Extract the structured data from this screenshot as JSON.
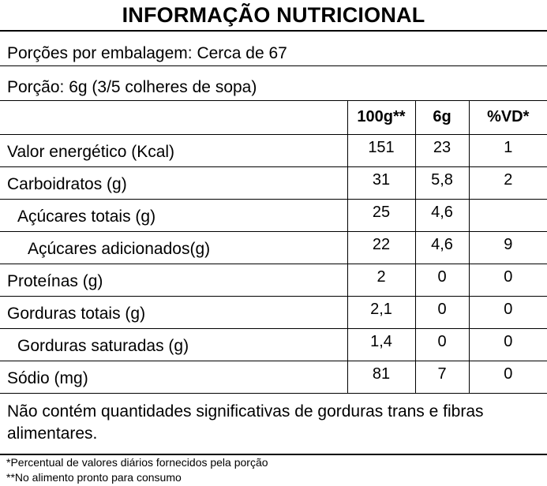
{
  "title": "INFORMAÇÃO NUTRICIONAL",
  "servings_per_package": "Porções por embalagem: Cerca de 67",
  "portion": "Porção: 6g (3/5 colheres de sopa)",
  "table": {
    "headers": [
      "100g**",
      "6g",
      "%VD*"
    ],
    "rows": [
      {
        "label": "Valor energético (Kcal)",
        "per100g": "151",
        "perPortion": "23",
        "vd": "1"
      },
      {
        "label": "Carboidratos (g)",
        "per100g": "31",
        "perPortion": "5,8",
        "vd": "2"
      },
      {
        "label": "Açúcares totais (g)",
        "per100g": "25",
        "perPortion": "4,6",
        "vd": ""
      },
      {
        "label": "Açúcares adicionados(g)",
        "per100g": "22",
        "perPortion": "4,6",
        "vd": "9"
      },
      {
        "label": "Proteínas (g)",
        "per100g": "2",
        "perPortion": "0",
        "vd": "0"
      },
      {
        "label": "Gorduras totais (g)",
        "per100g": "2,1",
        "perPortion": "0",
        "vd": "0"
      },
      {
        "label": "Gorduras saturadas (g)",
        "per100g": "1,4",
        "perPortion": "0",
        "vd": "0"
      },
      {
        "label": "Sódio (mg)",
        "per100g": "81",
        "perPortion": "7",
        "vd": "0"
      }
    ]
  },
  "note": "Não contém quantidades significativas de gorduras trans e fibras alimentares.",
  "footnotes": [
    "*Percentual de valores diários fornecidos pela porção",
    "**No alimento pronto para consumo"
  ]
}
